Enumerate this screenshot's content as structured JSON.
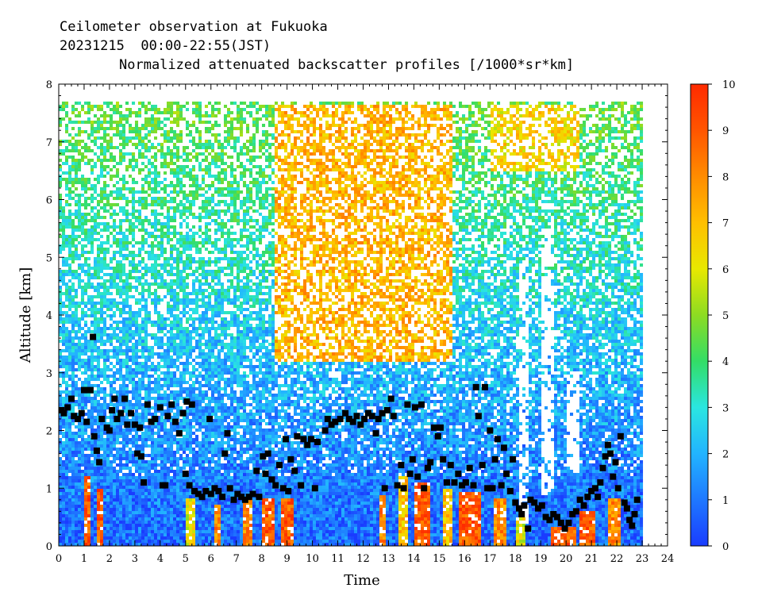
{
  "header": {
    "line1": "Ceilometer observation at Fukuoka",
    "line2": "20231215  00:00-22:55(JST)",
    "line3": "Normalized attenuated backscatter profiles [/1000*sr*km]"
  },
  "chart_data": {
    "type": "heatmap",
    "xlabel": "Time",
    "ylabel": "Altitude [km]",
    "xlim": [
      0,
      24
    ],
    "ylim": [
      0,
      8
    ],
    "x_ticks": [
      "0",
      "1",
      "2",
      "3",
      "4",
      "5",
      "6",
      "7",
      "8",
      "9",
      "10",
      "11",
      "12",
      "13",
      "14",
      "15",
      "16",
      "17",
      "18",
      "19",
      "20",
      "21",
      "22",
      "23",
      "24"
    ],
    "y_ticks": [
      "0",
      "1",
      "2",
      "3",
      "4",
      "5",
      "6",
      "7",
      "8"
    ],
    "data_extent": {
      "time_end": 22.92,
      "altitude_top": 7.65
    },
    "colorbar": {
      "range": [
        0,
        10
      ],
      "ticks": [
        "0",
        "1",
        "2",
        "3",
        "4",
        "5",
        "6",
        "7",
        "8",
        "9",
        "10"
      ],
      "colors": [
        "#1a3cff",
        "#1e78ff",
        "#22b4ff",
        "#2ae6e0",
        "#33dd66",
        "#8ddc22",
        "#e8e800",
        "#ffbf00",
        "#ff8c00",
        "#ff5500",
        "#ff2a00"
      ]
    },
    "background_profile": [
      {
        "altitude": 0.3,
        "value": 0.8
      },
      {
        "altitude": 1.5,
        "value": 1.3
      },
      {
        "altitude": 2.5,
        "value": 1.8
      },
      {
        "altitude": 3.5,
        "value": 2.3
      },
      {
        "altitude": 4.5,
        "value": 2.9
      },
      {
        "altitude": 5.5,
        "value": 3.4
      },
      {
        "altitude": 6.5,
        "value": 3.9
      },
      {
        "altitude": 7.5,
        "value": 4.4
      }
    ],
    "aerosol_enhancement": [
      {
        "time_start": 8.5,
        "time_end": 15.5,
        "altitude_min": 3.2,
        "altitude_max": 7.65,
        "value": 7.2
      },
      {
        "time_start": 17.0,
        "time_end": 20.5,
        "altitude_min": 6.5,
        "altitude_max": 7.65,
        "value": 6.5
      }
    ],
    "gaps": [
      {
        "time_start": 18.2,
        "time_end": 18.5,
        "altitude_min": 0.3,
        "altitude_max": 5.0
      },
      {
        "time_start": 19.0,
        "time_end": 19.5,
        "altitude_min": 0.9,
        "altitude_max": 5.5
      },
      {
        "time_start": 20.0,
        "time_end": 20.5,
        "altitude_min": 1.4,
        "altitude_max": 3.0
      }
    ],
    "strong_layers": [
      {
        "time_start": 1.0,
        "time_end": 1.2,
        "altitude_min": 0.0,
        "altitude_max": 1.2,
        "value": 9
      },
      {
        "time_start": 1.5,
        "time_end": 1.7,
        "altitude_min": 0.0,
        "altitude_max": 1.0,
        "value": 9
      },
      {
        "time_start": 5.0,
        "time_end": 5.4,
        "altitude_min": 0.0,
        "altitude_max": 0.8,
        "value": 6
      },
      {
        "time_start": 6.1,
        "time_end": 6.4,
        "altitude_min": 0.0,
        "altitude_max": 0.7,
        "value": 8
      },
      {
        "time_start": 7.2,
        "time_end": 7.6,
        "altitude_min": 0.0,
        "altitude_max": 0.8,
        "value": 8
      },
      {
        "time_start": 8.0,
        "time_end": 8.5,
        "altitude_min": 0.0,
        "altitude_max": 0.8,
        "value": 9
      },
      {
        "time_start": 8.8,
        "time_end": 9.3,
        "altitude_min": 0.0,
        "altitude_max": 0.8,
        "value": 9
      },
      {
        "time_start": 12.6,
        "time_end": 12.9,
        "altitude_min": 0.0,
        "altitude_max": 0.9,
        "value": 8
      },
      {
        "time_start": 13.4,
        "time_end": 13.8,
        "altitude_min": 0.0,
        "altitude_max": 1.2,
        "value": 7
      },
      {
        "time_start": 14.0,
        "time_end": 14.6,
        "altitude_min": 0.0,
        "altitude_max": 1.1,
        "value": 9
      },
      {
        "time_start": 15.1,
        "time_end": 15.5,
        "altitude_min": 0.0,
        "altitude_max": 1.0,
        "value": 7
      },
      {
        "time_start": 15.8,
        "time_end": 16.7,
        "altitude_min": 0.0,
        "altitude_max": 0.95,
        "value": 9
      },
      {
        "time_start": 17.1,
        "time_end": 17.6,
        "altitude_min": 0.0,
        "altitude_max": 0.8,
        "value": 8
      },
      {
        "time_start": 18.0,
        "time_end": 18.4,
        "altitude_min": 0.0,
        "altitude_max": 0.5,
        "value": 6
      },
      {
        "time_start": 19.4,
        "time_end": 20.4,
        "altitude_min": 0.0,
        "altitude_max": 0.35,
        "value": 9
      },
      {
        "time_start": 20.5,
        "time_end": 21.1,
        "altitude_min": 0.0,
        "altitude_max": 0.6,
        "value": 9
      },
      {
        "time_start": 21.6,
        "time_end": 22.2,
        "altitude_min": 0.0,
        "altitude_max": 0.8,
        "value": 8
      }
    ],
    "layer_height_markers": [
      {
        "t": 0.1,
        "h": 2.35
      },
      {
        "t": 0.2,
        "h": 2.3
      },
      {
        "t": 0.35,
        "h": 2.4
      },
      {
        "t": 0.5,
        "h": 2.55
      },
      {
        "t": 0.6,
        "h": 2.25
      },
      {
        "t": 0.75,
        "h": 2.2
      },
      {
        "t": 0.9,
        "h": 2.3
      },
      {
        "t": 1.0,
        "h": 2.7
      },
      {
        "t": 1.1,
        "h": 2.15
      },
      {
        "t": 1.25,
        "h": 2.7
      },
      {
        "t": 1.35,
        "h": 3.62
      },
      {
        "t": 1.4,
        "h": 1.9
      },
      {
        "t": 1.5,
        "h": 1.65
      },
      {
        "t": 1.6,
        "h": 1.45
      },
      {
        "t": 1.7,
        "h": 2.2
      },
      {
        "t": 1.9,
        "h": 2.05
      },
      {
        "t": 2.0,
        "h": 2.0
      },
      {
        "t": 2.1,
        "h": 2.35
      },
      {
        "t": 2.2,
        "h": 2.55
      },
      {
        "t": 2.3,
        "h": 2.2
      },
      {
        "t": 2.45,
        "h": 2.3
      },
      {
        "t": 2.6,
        "h": 2.55
      },
      {
        "t": 2.7,
        "h": 2.1
      },
      {
        "t": 2.85,
        "h": 2.3
      },
      {
        "t": 3.0,
        "h": 2.1
      },
      {
        "t": 3.1,
        "h": 1.6
      },
      {
        "t": 3.2,
        "h": 2.05
      },
      {
        "t": 3.25,
        "h": 1.55
      },
      {
        "t": 3.35,
        "h": 1.1
      },
      {
        "t": 3.5,
        "h": 2.45
      },
      {
        "t": 3.65,
        "h": 2.15
      },
      {
        "t": 3.8,
        "h": 2.2
      },
      {
        "t": 4.0,
        "h": 2.4
      },
      {
        "t": 4.1,
        "h": 1.05
      },
      {
        "t": 4.2,
        "h": 1.05
      },
      {
        "t": 4.3,
        "h": 2.25
      },
      {
        "t": 4.45,
        "h": 2.45
      },
      {
        "t": 4.6,
        "h": 2.15
      },
      {
        "t": 4.75,
        "h": 1.95
      },
      {
        "t": 4.9,
        "h": 2.3
      },
      {
        "t": 5.0,
        "h": 1.25
      },
      {
        "t": 5.05,
        "h": 2.5
      },
      {
        "t": 5.15,
        "h": 1.05
      },
      {
        "t": 5.25,
        "h": 2.45
      },
      {
        "t": 5.35,
        "h": 0.95
      },
      {
        "t": 5.5,
        "h": 0.9
      },
      {
        "t": 5.65,
        "h": 0.85
      },
      {
        "t": 5.8,
        "h": 0.95
      },
      {
        "t": 5.95,
        "h": 2.2
      },
      {
        "t": 6.0,
        "h": 0.9
      },
      {
        "t": 6.15,
        "h": 1.0
      },
      {
        "t": 6.3,
        "h": 0.95
      },
      {
        "t": 6.45,
        "h": 0.85
      },
      {
        "t": 6.55,
        "h": 1.6
      },
      {
        "t": 6.65,
        "h": 1.95
      },
      {
        "t": 6.75,
        "h": 1.0
      },
      {
        "t": 6.9,
        "h": 0.8
      },
      {
        "t": 7.05,
        "h": 0.9
      },
      {
        "t": 7.2,
        "h": 0.85
      },
      {
        "t": 7.35,
        "h": 0.8
      },
      {
        "t": 7.5,
        "h": 0.85
      },
      {
        "t": 7.65,
        "h": 0.9
      },
      {
        "t": 7.8,
        "h": 1.3
      },
      {
        "t": 7.9,
        "h": 0.85
      },
      {
        "t": 8.05,
        "h": 1.55
      },
      {
        "t": 8.15,
        "h": 1.25
      },
      {
        "t": 8.25,
        "h": 1.6
      },
      {
        "t": 8.4,
        "h": 1.15
      },
      {
        "t": 8.55,
        "h": 1.05
      },
      {
        "t": 8.7,
        "h": 1.4
      },
      {
        "t": 8.85,
        "h": 1.0
      },
      {
        "t": 8.95,
        "h": 1.85
      },
      {
        "t": 9.05,
        "h": 0.95
      },
      {
        "t": 9.15,
        "h": 1.5
      },
      {
        "t": 9.3,
        "h": 1.3
      },
      {
        "t": 9.4,
        "h": 1.9
      },
      {
        "t": 9.55,
        "h": 1.05
      },
      {
        "t": 9.65,
        "h": 1.85
      },
      {
        "t": 9.8,
        "h": 1.75
      },
      {
        "t": 9.95,
        "h": 1.85
      },
      {
        "t": 10.1,
        "h": 1.0
      },
      {
        "t": 10.2,
        "h": 1.8
      },
      {
        "t": 10.5,
        "h": 2.0
      },
      {
        "t": 10.6,
        "h": 2.2
      },
      {
        "t": 10.75,
        "h": 2.1
      },
      {
        "t": 10.9,
        "h": 2.15
      },
      {
        "t": 11.1,
        "h": 2.2
      },
      {
        "t": 11.3,
        "h": 2.3
      },
      {
        "t": 11.45,
        "h": 2.2
      },
      {
        "t": 11.6,
        "h": 2.15
      },
      {
        "t": 11.75,
        "h": 2.25
      },
      {
        "t": 11.9,
        "h": 2.1
      },
      {
        "t": 12.05,
        "h": 2.2
      },
      {
        "t": 12.2,
        "h": 2.3
      },
      {
        "t": 12.35,
        "h": 2.25
      },
      {
        "t": 12.5,
        "h": 1.95
      },
      {
        "t": 12.6,
        "h": 2.2
      },
      {
        "t": 12.75,
        "h": 2.3
      },
      {
        "t": 12.85,
        "h": 1.0
      },
      {
        "t": 12.95,
        "h": 2.35
      },
      {
        "t": 13.1,
        "h": 2.55
      },
      {
        "t": 13.2,
        "h": 2.25
      },
      {
        "t": 13.35,
        "h": 1.05
      },
      {
        "t": 13.5,
        "h": 1.4
      },
      {
        "t": 13.6,
        "h": 1.0
      },
      {
        "t": 13.75,
        "h": 2.45
      },
      {
        "t": 13.85,
        "h": 1.25
      },
      {
        "t": 13.95,
        "h": 1.5
      },
      {
        "t": 14.05,
        "h": 2.4
      },
      {
        "t": 14.15,
        "h": 1.2
      },
      {
        "t": 14.3,
        "h": 2.45
      },
      {
        "t": 14.4,
        "h": 1.0
      },
      {
        "t": 14.55,
        "h": 1.35
      },
      {
        "t": 14.65,
        "h": 1.45
      },
      {
        "t": 14.8,
        "h": 2.05
      },
      {
        "t": 14.95,
        "h": 1.9
      },
      {
        "t": 15.05,
        "h": 2.05
      },
      {
        "t": 15.15,
        "h": 1.5
      },
      {
        "t": 15.3,
        "h": 1.1
      },
      {
        "t": 15.45,
        "h": 1.4
      },
      {
        "t": 15.6,
        "h": 1.1
      },
      {
        "t": 15.75,
        "h": 1.25
      },
      {
        "t": 15.9,
        "h": 1.05
      },
      {
        "t": 16.05,
        "h": 1.1
      },
      {
        "t": 16.2,
        "h": 1.35
      },
      {
        "t": 16.35,
        "h": 1.05
      },
      {
        "t": 16.45,
        "h": 2.75
      },
      {
        "t": 16.55,
        "h": 2.25
      },
      {
        "t": 16.7,
        "h": 1.4
      },
      {
        "t": 16.8,
        "h": 2.75
      },
      {
        "t": 16.9,
        "h": 1.0
      },
      {
        "t": 17.0,
        "h": 2.0
      },
      {
        "t": 17.1,
        "h": 1.0
      },
      {
        "t": 17.2,
        "h": 1.5
      },
      {
        "t": 17.3,
        "h": 1.85
      },
      {
        "t": 17.45,
        "h": 1.05
      },
      {
        "t": 17.55,
        "h": 1.7
      },
      {
        "t": 17.65,
        "h": 1.25
      },
      {
        "t": 17.8,
        "h": 0.95
      },
      {
        "t": 17.9,
        "h": 1.5
      },
      {
        "t": 18.0,
        "h": 0.75
      },
      {
        "t": 18.15,
        "h": 0.65
      },
      {
        "t": 18.25,
        "h": 0.55
      },
      {
        "t": 18.35,
        "h": 0.7
      },
      {
        "t": 18.5,
        "h": 0.3
      },
      {
        "t": 18.6,
        "h": 0.8
      },
      {
        "t": 18.75,
        "h": 0.75
      },
      {
        "t": 18.9,
        "h": 0.65
      },
      {
        "t": 19.05,
        "h": 0.7
      },
      {
        "t": 19.2,
        "h": 0.5
      },
      {
        "t": 19.35,
        "h": 0.45
      },
      {
        "t": 19.5,
        "h": 0.55
      },
      {
        "t": 19.65,
        "h": 0.5
      },
      {
        "t": 19.8,
        "h": 0.4
      },
      {
        "t": 19.95,
        "h": 0.3
      },
      {
        "t": 20.1,
        "h": 0.4
      },
      {
        "t": 20.25,
        "h": 0.55
      },
      {
        "t": 20.4,
        "h": 0.6
      },
      {
        "t": 20.55,
        "h": 0.8
      },
      {
        "t": 20.7,
        "h": 0.7
      },
      {
        "t": 20.85,
        "h": 0.85
      },
      {
        "t": 21.0,
        "h": 0.95
      },
      {
        "t": 21.15,
        "h": 1.0
      },
      {
        "t": 21.25,
        "h": 0.85
      },
      {
        "t": 21.35,
        "h": 1.1
      },
      {
        "t": 21.45,
        "h": 1.35
      },
      {
        "t": 21.55,
        "h": 1.55
      },
      {
        "t": 21.65,
        "h": 1.75
      },
      {
        "t": 21.75,
        "h": 1.6
      },
      {
        "t": 21.85,
        "h": 1.2
      },
      {
        "t": 21.95,
        "h": 1.45
      },
      {
        "t": 22.05,
        "h": 1.0
      },
      {
        "t": 22.15,
        "h": 1.9
      },
      {
        "t": 22.3,
        "h": 0.75
      },
      {
        "t": 22.4,
        "h": 0.65
      },
      {
        "t": 22.5,
        "h": 0.45
      },
      {
        "t": 22.6,
        "h": 0.35
      },
      {
        "t": 22.7,
        "h": 0.55
      },
      {
        "t": 22.8,
        "h": 0.8
      }
    ]
  }
}
